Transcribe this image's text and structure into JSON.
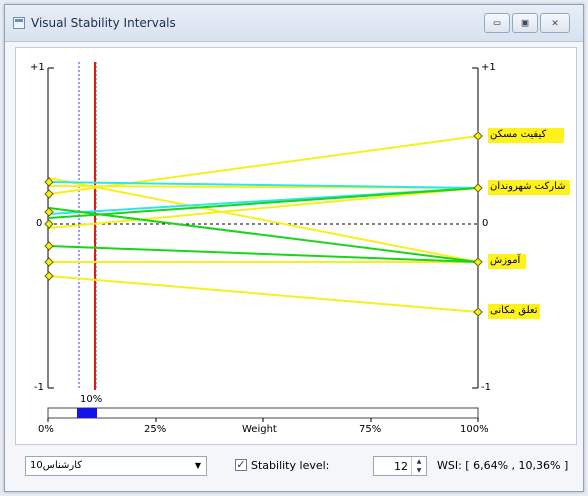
{
  "window": {
    "title": "Visual Stability Intervals",
    "buttons": {
      "minimize": "▭",
      "maximize": "▣",
      "close": "✕"
    }
  },
  "plot": {
    "left_axis": {
      "top_label": "+1",
      "zero_label": "0",
      "bottom_label": "-1"
    },
    "right_axis": {
      "top_label": "+1",
      "zero_label": "0",
      "bottom_label": "-1"
    },
    "criteria": [
      {
        "label": "کیفیت مسکن"
      },
      {
        "label": "شارکت شهروندان"
      },
      {
        "label": "آموزش"
      },
      {
        "label": "تعلق مکانی"
      }
    ],
    "marker_label": "10%",
    "weight_axis": {
      "ticks": [
        "0%",
        "25%",
        "Weight",
        "75%",
        "100%"
      ]
    },
    "colors": {
      "yellow": "#f5f01e",
      "cyan": "#2ee6e6",
      "green": "#19d419",
      "red_line": "#e01a1a",
      "blue_dotted": "#3a3ae6",
      "label_bg": "#fff21a",
      "slider_fill": "#1414e6"
    }
  },
  "controls": {
    "expert_select": "کارشناس10",
    "stability_checkbox_checked": "✓",
    "stability_label": "Stability level:",
    "stability_value": "12",
    "wsi_text": "WSI: [ 6,64% , 10,36% ]"
  }
}
